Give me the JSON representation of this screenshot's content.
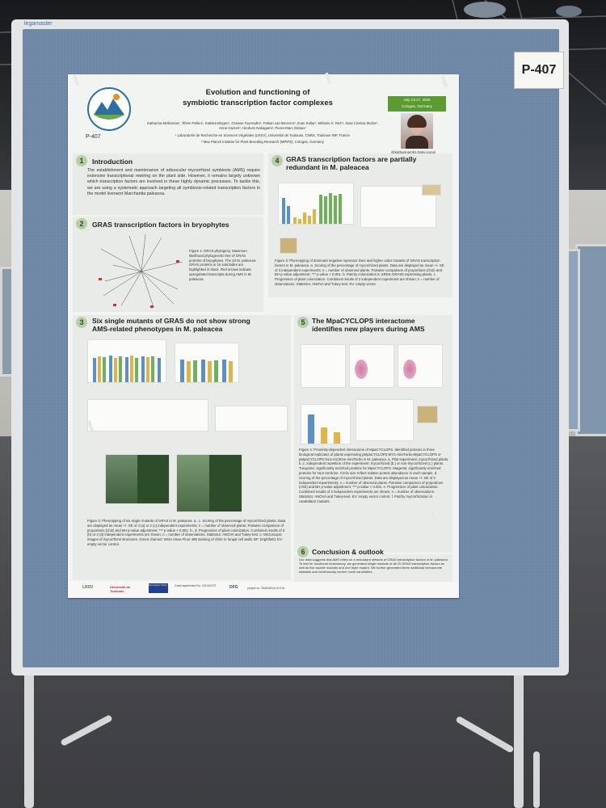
{
  "stand": {
    "brand": "legamaster",
    "poster_number": "P-407"
  },
  "poster": {
    "poster_id": "P-407",
    "conference_logo_text": "2025 IS-MPMI Congress",
    "title_line1": "Evolution and functioning of",
    "title_line2": "symbiotic transcription factor complexes",
    "date_line1": "July 13-17, 2025",
    "date_line2": "Cologne, Germany",
    "handle": "@katharinamb1.bsky.social",
    "authors": "Katharina Melkonian¹, Tifenn Pellen¹, Katinka Bingen¹, Océane Tournadre¹, Fabian van Beveren², Iman Kollar², Mélanie K. Rich¹, Sara Cristina Stolze², Anne Harzen², Hirofumi Nakagami², Pierre-Marc Delaux¹",
    "affiliation1": "¹ Laboratoire de Recherche en Sciences Végétales (LRSV), Université de Toulouse, CNRS, Toulouse INP, France",
    "affiliation2": "² Max Planck Institute for Plant Breeding Research (MPIPZ), Cologne, Germany",
    "sections": [
      {
        "num": "1",
        "title": "Introduction",
        "text": "The establishment and maintenance of arbuscular mycorrhizal symbiosis (AMS) require extensive transcriptional rewiring on the plant side. However, it remains largely unknown which transcription factors are involved in these highly dynamic processes. To tackle this, we are using a systematic approach targeting all symbiosis-related transcription factors in the model liverwort Marchantia paleacea."
      },
      {
        "num": "2",
        "title": "GRAS transcription factors in bryophytes",
        "text": "Figure 1: GRAS phylogeny. Maximum likelihood phylogenetic tree of GRAS proteins of bryophytes. The 20 M. paleacea GRAS proteins in 16 subclades are highlighted in black. Red arrows indicate upregulated transcripts during AMS in M. paleacea."
      },
      {
        "num": "3",
        "title_line1": "Six single mutants of GRAS do not show strong",
        "title_line2": "AMS-related phenotypes in M. paleacea",
        "text": "Figure 2: Phenotyping of six single mutants of GRAS in M. paleacea. a., c. Scoring of the percentage of mycorrhized plants. Data are displayed as mean +/- SE of 4 (a) or 2 (c) independent experiments; n = number of observed plants. Pairwise comparison of proportions (chi2) and BH p-value adjustment; *** p-value < 0.001. b., d. Progression of plant colonization. Combined results of 3 (b) or 2 (d) independent experiments are shown; n = number of observations. Statistics: ANOVA and Tukey-test. e. Microscopic images of mycorrhizal structures. Green channel: WGA Alexa Fluor 488 staining of chitin in fungal cell walls. BF: brightfield. EV: empty vector control."
      },
      {
        "num": "4",
        "title_line1": "GRAS transcription factors are partially",
        "title_line2": "redundant in M. paleacea",
        "text": "Figure 3: Phenotyping of dominant negative repressor lines and higher order mutants of GRAS transcription factors in M. paleacea. a. Scoring of the percentage of mycorrhized plants. Data are displayed as mean +/- SE of 3 independent experiments; n = number of observed plants. Pairwise comparison of proportions (chi2) and BH p-value adjustment; *** p-value < 0.001. b. Patchy colonization in SRDX-GRAS8 expressing plants. c. Progression of plant colonization. Combined results of 2 independent experiment are shown; n = number of observations. Statistics: ANOVA and Tukey-test. EV: empty vector."
      },
      {
        "num": "5",
        "title_line1": "The MpaCYCLOPS interactome",
        "title_line2": "identifies new players during AMS",
        "text": "Figure 4: Proximity-dependent interactome of MpaCYCLOPS. Identified proteins in three biological replicates of plants expressing pMpaCYCLOPS:MYC-miniTurbo-MpaCYCLOPS or pMpaCYCLOPS:NLS-mCitrine-miniTurbo in M. paleacea. a. Pilot experiment; mycorrhized plants. b.,c. Independent repetition of the experiment; mycorrhized (b.) or non-mycorrhized (c.) plants. Turquoise: significantly enriched proteins for MpaCYCLOPS. Magenta: significantly enriched proteins for NLS-mCitrine. Circle size reflect relative protein abundance in each sample. d. Scoring of the percentage of mycorrhized plants. Data are displayed as mean +/- SE of 3 independent experiments; n = number of observed plants. Pairwise comparison of proportions (chi2) and BH p-value adjustment; *** p-value < 0.001. e. Progression of plant colonization. Combined results of 3 independent experiments are shown; n = number of observations. Statistics: ANOVA and Tukey-test. EV: empty vector control. f. Patchy mycorrhization in candidate2 mutants."
      },
      {
        "num": "6",
        "title": "Conclusion & outlook",
        "text": "Our data suggests that AMS relies on a redundant network of GRAS transcription factors in M. paleacea. To test for functional redundancy, we generated single mutants of all 20 GRAS transcription factors as well as five double mutants and one triple mutant. We further generated three additional interactome datasets and continuously screen novel candidates."
      }
    ],
    "footer_logos": [
      "LRSV",
      "Université de Toulouse",
      "European Union",
      "Grant agreement No. 101041272",
      "DFG",
      "project no. 534816024 to K.M."
    ]
  },
  "colors": {
    "board": "#6e87a4",
    "section_badge": "#b9cfa9",
    "date_box": "#5a9a2e",
    "bar_blue": "#5b8fc8",
    "bar_yellow": "#e0b44c",
    "bar_green": "#6fb05a"
  }
}
